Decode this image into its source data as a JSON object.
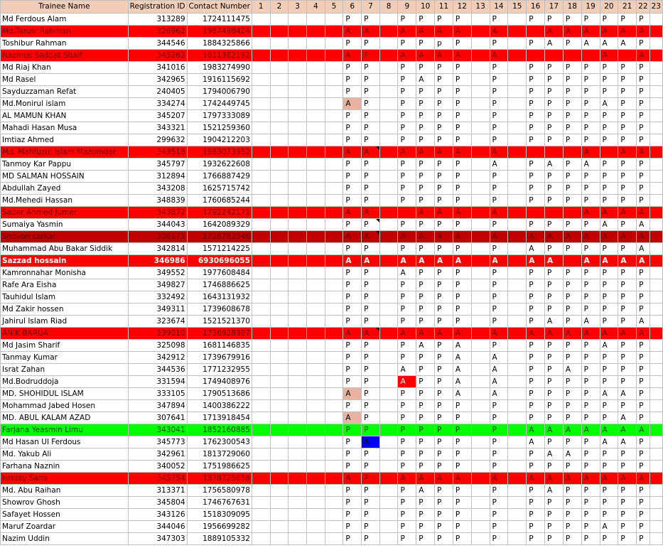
{
  "colors": {
    "header_bg": "#f2cdb8",
    "fill-red": "#ff0000",
    "fill-dark-red": "#c00000",
    "fill-green": "#00ff00",
    "hl-salmon": "#e8b3a0",
    "hl-red": "#ff0000",
    "hl-blue": "#0000ff"
  },
  "headers": [
    "Trainee Name",
    "Registration ID",
    "Contact Number",
    "1",
    "2",
    "3",
    "4",
    "5",
    "6",
    "7",
    "8",
    "9",
    "10",
    "11",
    "12",
    "13",
    "14",
    "15",
    "16",
    "17",
    "18",
    "19",
    "20",
    "21",
    "22",
    "23"
  ],
  "rows": [
    {
      "name": "Md Ferdous Alam",
      "reg": "313289",
      "phone": "1724111475",
      "marks": [
        "",
        "",
        "",
        "",
        "",
        "P",
        "P",
        "",
        "P",
        "P",
        "P",
        "P",
        "",
        "P",
        "",
        "P",
        "P",
        "P",
        "P",
        "P",
        "P",
        "P",
        ""
      ]
    },
    {
      "name": "Md.Tanzir Rahman",
      "reg": "326962",
      "phone": "1987498424",
      "fill": "fill-red",
      "marks": [
        "",
        "",
        "",
        "",
        "",
        "A",
        "A",
        "",
        "A",
        "A",
        "A",
        "A",
        "",
        "A",
        "",
        "",
        "A",
        "A",
        "A",
        "A",
        "A",
        "A",
        ""
      ]
    },
    {
      "name": "Toshibur Rahman",
      "reg": "344546",
      "phone": "1884325866",
      "marks": [
        "",
        "",
        "",
        "",
        "",
        "P",
        "P",
        "",
        "P",
        "P",
        "p",
        "P",
        "",
        "P",
        "",
        "P",
        "A",
        "P",
        "A",
        "A",
        "A",
        "P",
        ""
      ]
    },
    {
      "name": "Nazmus Saddat Shaif",
      "reg": "345262",
      "phone": "1611382192",
      "fill": "fill-red",
      "marks": [
        "",
        "",
        "",
        "",
        "",
        "A",
        "P",
        "",
        "A",
        "A",
        "A",
        "A",
        "",
        "A",
        "",
        "",
        "",
        "",
        "",
        "A",
        "",
        "A",
        ""
      ]
    },
    {
      "name": "Md Riaj Khan",
      "reg": "341016",
      "phone": "1983274990",
      "marks": [
        "",
        "",
        "",
        "",
        "",
        "P",
        "P",
        "",
        "P",
        "P",
        "P",
        "P",
        "",
        "P",
        "",
        "P",
        "P",
        "P",
        "P",
        "P",
        "P",
        "P",
        ""
      ]
    },
    {
      "name": "Md Rasel",
      "reg": "342965",
      "phone": "1916115692",
      "marks": [
        "",
        "",
        "",
        "",
        "",
        "P",
        "P",
        "",
        "P",
        "A",
        "P",
        "P",
        "",
        "P",
        "",
        "P",
        "P",
        "P",
        "P",
        "P",
        "P",
        "P",
        ""
      ]
    },
    {
      "name": "Sayduzzaman Refat",
      "reg": "240405",
      "phone": "1794006790",
      "marks": [
        "",
        "",
        "",
        "",
        "",
        "P",
        "P",
        "",
        "P",
        "P",
        "P",
        "P",
        "",
        "P",
        "",
        "P",
        "P",
        "P",
        "P",
        "P",
        "P",
        "P",
        ""
      ]
    },
    {
      "name": "Md.Monirul islam",
      "reg": "334274",
      "phone": "1742449745",
      "hl": {
        "5": "hl-salmon"
      },
      "marks": [
        "",
        "",
        "",
        "",
        "",
        "A",
        "P",
        "",
        "P",
        "P",
        "P",
        "P",
        "",
        "P",
        "",
        "P",
        "P",
        "P",
        "P",
        "A",
        "P",
        "P",
        ""
      ]
    },
    {
      "name": "AL MAMUN KHAN",
      "reg": "345207",
      "phone": "1797333089",
      "marks": [
        "",
        "",
        "",
        "",
        "",
        "P",
        "P",
        "",
        "P",
        "P",
        "P",
        "P",
        "",
        "P",
        "",
        "P",
        "P",
        "P",
        "P",
        "P",
        "P",
        "P",
        ""
      ]
    },
    {
      "name": "Mahadi Hasan Musa",
      "reg": "343321",
      "phone": "1521259360",
      "marks": [
        "",
        "",
        "",
        "",
        "",
        "P",
        "P",
        "",
        "P",
        "P",
        "P",
        "P",
        "",
        "P",
        "",
        "P",
        "P",
        "P",
        "P",
        "P",
        "P",
        "P",
        ""
      ]
    },
    {
      "name": "Imtiaz Ahmed",
      "reg": "299632",
      "phone": "1904212203",
      "marks": [
        "",
        "",
        "",
        "",
        "",
        "P",
        "P",
        "",
        "P",
        "P",
        "P",
        "P",
        "",
        "P",
        "",
        "P",
        "P",
        "P",
        "P",
        "P",
        "P",
        "P",
        ""
      ]
    },
    {
      "name": "Md. Mahfuzul Islam Mazumder",
      "reg": "343518",
      "phone": "1683073952",
      "fill": "fill-red",
      "flags": [
        6
      ],
      "marks": [
        "",
        "",
        "",
        "",
        "",
        "A",
        "A",
        "",
        "A",
        "A",
        "A",
        "A",
        "",
        "A",
        "",
        "",
        "",
        "",
        "A",
        "",
        "A",
        "A",
        ""
      ]
    },
    {
      "name": "Tanmoy Kar Pappu",
      "reg": "345797",
      "phone": "1932622608",
      "marks": [
        "",
        "",
        "",
        "",
        "",
        "P",
        "P",
        "",
        "P",
        "P",
        "P",
        "P",
        "",
        "A",
        "",
        "P",
        "A",
        "P",
        "A",
        "P",
        "P",
        "P",
        ""
      ]
    },
    {
      "name": "MD SALMAN HOSSAIN",
      "reg": "312894",
      "phone": "1766887429",
      "marks": [
        "",
        "",
        "",
        "",
        "",
        "P",
        "P",
        "",
        "P",
        "P",
        "P",
        "P",
        "",
        "P",
        "",
        "P",
        "P",
        "P",
        "P",
        "P",
        "P",
        "P",
        ""
      ]
    },
    {
      "name": "Abdullah Zayed",
      "reg": "343208",
      "phone": "1625715742",
      "marks": [
        "",
        "",
        "",
        "",
        "",
        "P",
        "P",
        "",
        "P",
        "P",
        "P",
        "P",
        "",
        "P",
        "",
        "P",
        "P",
        "P",
        "P",
        "P",
        "P",
        "P",
        ""
      ]
    },
    {
      "name": "Md.Mehedi Hassan",
      "reg": "348839",
      "phone": "1760685244",
      "marks": [
        "",
        "",
        "",
        "",
        "",
        "P",
        "P",
        "",
        "P",
        "P",
        "P",
        "P",
        "",
        "P",
        "",
        "P",
        "P",
        "P",
        "P",
        "P",
        "P",
        "P",
        ""
      ]
    },
    {
      "name": "Saber Ahmed Jumer",
      "reg": "343872",
      "phone": "1792242171",
      "fill": "fill-red",
      "marks": [
        "",
        "",
        "",
        "",
        "",
        "A",
        "A",
        "",
        "",
        "A",
        "A",
        "A",
        "",
        "A",
        "",
        "",
        "",
        "",
        "A",
        "A",
        "A",
        "A",
        ""
      ]
    },
    {
      "name": "Sumaiya Yasmin",
      "reg": "344043",
      "phone": "1642089329",
      "flags": [
        6
      ],
      "marks": [
        "",
        "",
        "",
        "",
        "",
        "P",
        "P",
        "",
        "P",
        "P",
        "P",
        "P",
        "",
        "P",
        "",
        "P",
        "P",
        "P",
        "P",
        "A",
        "P",
        "A",
        ""
      ]
    },
    {
      "name": "Shovon sarkar",
      "reg": "336175",
      "phone": "1726782546",
      "fill": "fill-dark-red",
      "flags": [
        6
      ],
      "marks": [
        "",
        "",
        "",
        "",
        "",
        "A",
        "A",
        "",
        "A",
        "A",
        "A",
        "A",
        "",
        "A",
        "",
        "A",
        "A",
        "A",
        "A",
        "A",
        "A",
        "A",
        ""
      ]
    },
    {
      "name": "Muhammad Abu Bakar Siddik",
      "reg": "342814",
      "phone": "1571214225",
      "marks": [
        "",
        "",
        "",
        "",
        "",
        "P",
        "P",
        "",
        "P",
        "P",
        "P",
        "P",
        "",
        "P",
        "",
        "A",
        "P",
        "P",
        "P",
        "P",
        "P",
        "A",
        ""
      ]
    },
    {
      "name": "Sazzad hossain",
      "reg": "346986",
      "phone": "6930696055",
      "fill": "fill-red",
      "style": "bold-white",
      "marks": [
        "",
        "",
        "",
        "",
        "",
        "A",
        "A",
        "",
        "A",
        "A",
        "A",
        "A",
        "",
        "A",
        "",
        "A",
        "A",
        "",
        "A",
        "A",
        "A",
        "A",
        ""
      ]
    },
    {
      "name": "Kamronnahar Monisha",
      "reg": "349552",
      "phone": "1977608484",
      "marks": [
        "",
        "",
        "",
        "",
        "",
        "P",
        "P",
        "",
        "A",
        "P",
        "P",
        "P",
        "",
        "P",
        "",
        "P",
        "P",
        "P",
        "P",
        "P",
        "P",
        "P",
        ""
      ]
    },
    {
      "name": "Rafe Ara Eisha",
      "reg": "349827",
      "phone": "1746886625",
      "marks": [
        "",
        "",
        "",
        "",
        "",
        "P",
        "P",
        "",
        "P",
        "P",
        "P",
        "P",
        "",
        "P",
        "",
        "P",
        "P",
        "P",
        "P",
        "P",
        "P",
        "P",
        ""
      ]
    },
    {
      "name": "Tauhidul Islam",
      "reg": "332492",
      "phone": "1643131932",
      "marks": [
        "",
        "",
        "",
        "",
        "",
        "P",
        "P",
        "",
        "P",
        "P",
        "P",
        "P",
        "",
        "P",
        "",
        "P",
        "P",
        "P",
        "P",
        "P",
        "P",
        "P",
        ""
      ]
    },
    {
      "name": "Md Zakir hossen",
      "reg": "349311",
      "phone": "1739608678",
      "marks": [
        "",
        "",
        "",
        "",
        "",
        "P",
        "P",
        "",
        "P",
        "P",
        "P",
        "P",
        "",
        "P",
        "",
        "P",
        "P",
        "P",
        "P",
        "P",
        "P",
        "P",
        ""
      ]
    },
    {
      "name": "Jahirul Islam Riad",
      "reg": "323674",
      "phone": "1521521370",
      "marks": [
        "",
        "",
        "",
        "",
        "",
        "P",
        "P",
        "",
        "P",
        "P",
        "P",
        "P",
        "",
        "P",
        "",
        "P",
        "A",
        "P",
        "A",
        "P",
        "P",
        "A",
        ""
      ]
    },
    {
      "name": "ANIK BARUA",
      "reg": "339010",
      "phone": "1736928997",
      "fill": "fill-red",
      "flags": [
        6
      ],
      "marks": [
        "",
        "",
        "",
        "",
        "",
        "A",
        "A",
        "",
        "A",
        "A",
        "A",
        "A",
        "",
        "A",
        "",
        "A",
        "A",
        "A",
        "A",
        "A",
        "A",
        "A",
        ""
      ]
    },
    {
      "name": "Md Jasim Sharif",
      "reg": "325098",
      "phone": "1681146835",
      "marks": [
        "",
        "",
        "",
        "",
        "",
        "P",
        "P",
        "",
        "P",
        "A",
        "P",
        "A",
        "",
        "P",
        "",
        "P",
        "P",
        "P",
        "P",
        "A",
        "P",
        "P",
        ""
      ]
    },
    {
      "name": "Tanmay Kumar",
      "reg": "342912",
      "phone": "1739679916",
      "marks": [
        "",
        "",
        "",
        "",
        "",
        "P",
        "P",
        "",
        "P",
        "P",
        "P",
        "A",
        "",
        "A",
        "",
        "P",
        "P",
        "P",
        "P",
        "P",
        "P",
        "P",
        ""
      ]
    },
    {
      "name": "Israt Zahan",
      "reg": "344536",
      "phone": "1771232955",
      "marks": [
        "",
        "",
        "",
        "",
        "",
        "P",
        "P",
        "",
        "A",
        "P",
        "P",
        "A",
        "",
        "A",
        "",
        "P",
        "P",
        "A",
        "P",
        "P",
        "P",
        "P",
        ""
      ]
    },
    {
      "name": "Md.Bodruddoja",
      "reg": "331594",
      "phone": "1749408976",
      "hl": {
        "8": "hl-red"
      },
      "marks": [
        "",
        "",
        "",
        "",
        "",
        "P",
        "P",
        "",
        "A",
        "P",
        "P",
        "A",
        "",
        "A",
        "",
        "P",
        "P",
        "P",
        "P",
        "P",
        "P",
        "P",
        ""
      ]
    },
    {
      "name": "MD. SHOHIDUL ISLAM",
      "reg": "333105",
      "phone": "1790513686",
      "hl": {
        "5": "hl-salmon"
      },
      "marks": [
        "",
        "",
        "",
        "",
        "",
        "A",
        "P",
        "",
        "P",
        "P",
        "P",
        "A",
        "",
        "A",
        "",
        "P",
        "P",
        "P",
        "P",
        "A",
        "A",
        "P",
        ""
      ]
    },
    {
      "name": "Mohammad Jabed Hosen",
      "reg": "347894",
      "phone": "1400386222",
      "marks": [
        "",
        "",
        "",
        "",
        "",
        "P",
        "P",
        "",
        "P",
        "P",
        "P",
        "P",
        "",
        "P",
        "",
        "P",
        "P",
        "P",
        "P",
        "P",
        "P",
        "P",
        ""
      ]
    },
    {
      "name": "MD. ABUL KALAM AZAD",
      "reg": "307641",
      "phone": "1713918454",
      "hl": {
        "5": "hl-salmon"
      },
      "marks": [
        "",
        "",
        "",
        "",
        "",
        "A",
        "P",
        "",
        "P",
        "P",
        "P",
        "P",
        "",
        "P",
        "",
        "P",
        "P",
        "P",
        "P",
        "P",
        "A",
        "P",
        ""
      ]
    },
    {
      "name": "Farjana Yeasmin Limu",
      "reg": "343041",
      "phone": "1852160885",
      "fill": "fill-green",
      "marks": [
        "",
        "",
        "",
        "",
        "",
        "P",
        "P",
        "",
        "P",
        "P",
        "P",
        "P",
        "",
        "P",
        "",
        "A",
        "A",
        "A",
        "A",
        "A",
        "A",
        "A",
        ""
      ]
    },
    {
      "name": "Md Hasan Ul Ferdous",
      "reg": "345773",
      "phone": "1762300543",
      "hl": {
        "6": "hl-blue"
      },
      "marks": [
        "",
        "",
        "",
        "",
        "",
        "P",
        "A",
        "",
        "P",
        "P",
        "P",
        "P",
        "",
        "P",
        "",
        "A",
        "P",
        "P",
        "P",
        "A",
        "A",
        "P",
        ""
      ]
    },
    {
      "name": "Md. Yakub Ali",
      "reg": "342961",
      "phone": "1813729060",
      "marks": [
        "",
        "",
        "",
        "",
        "",
        "P",
        "P",
        "",
        "P",
        "P",
        "P",
        "P",
        "",
        "P",
        "",
        "P",
        "A",
        "A",
        "P",
        "P",
        "P",
        "P",
        ""
      ]
    },
    {
      "name": "Farhana Naznin",
      "reg": "340052",
      "phone": "1751986625",
      "marks": [
        "",
        "",
        "",
        "",
        "",
        "P",
        "P",
        "",
        "P",
        "P",
        "P",
        "P",
        "",
        "P",
        "",
        "P",
        "P",
        "P",
        "P",
        "P",
        "P",
        "P",
        ""
      ]
    },
    {
      "name": "Hriday Saha",
      "reg": "345754",
      "phone": "1878725658",
      "fill": "fill-red",
      "marks": [
        "",
        "",
        "",
        "",
        "",
        "A",
        "P",
        "",
        "A",
        "A",
        "A",
        "A",
        "",
        "A",
        "",
        "A",
        "A",
        "A",
        "A",
        "A",
        "A",
        "A",
        ""
      ]
    },
    {
      "name": "Md. Abu Raihan",
      "reg": "313371",
      "phone": "1756580978",
      "marks": [
        "",
        "",
        "",
        "",
        "",
        "P",
        "P",
        "",
        "P",
        "A",
        "P",
        "P",
        "",
        "P",
        "",
        "P",
        "A",
        "P",
        "P",
        "P",
        "P",
        "P",
        ""
      ]
    },
    {
      "name": "Showrov Ghosh",
      "reg": "345804",
      "phone": "1746767631",
      "marks": [
        "",
        "",
        "",
        "",
        "",
        "P",
        "P",
        "",
        "P",
        "P",
        "P",
        "P",
        "",
        "P",
        "",
        "P",
        "P",
        "P",
        "P",
        "P",
        "P",
        "P",
        ""
      ]
    },
    {
      "name": "Safayet Hossen",
      "reg": "343126",
      "phone": "1518309095",
      "marks": [
        "",
        "",
        "",
        "",
        "",
        "P",
        "P",
        "",
        "P",
        "P",
        "P",
        "P",
        "",
        "P",
        "",
        "P",
        "P",
        "P",
        "P",
        "P",
        "P",
        "P",
        ""
      ]
    },
    {
      "name": "Maruf Zoardar",
      "reg": "344046",
      "phone": "1956699282",
      "marks": [
        "",
        "",
        "",
        "",
        "",
        "P",
        "P",
        "",
        "P",
        "P",
        "P",
        "P",
        "",
        "P",
        "",
        "P",
        "P",
        "P",
        "P",
        "A",
        "P",
        "P",
        ""
      ]
    },
    {
      "name": "Nazim Uddin",
      "reg": "347303",
      "phone": "1889105332",
      "marks": [
        "",
        "",
        "",
        "",
        "",
        "P",
        "P",
        "",
        "P",
        "P",
        "P",
        "P",
        "",
        "P",
        "",
        "P",
        "P",
        "P",
        "P",
        "P",
        "P",
        "P",
        ""
      ]
    }
  ]
}
